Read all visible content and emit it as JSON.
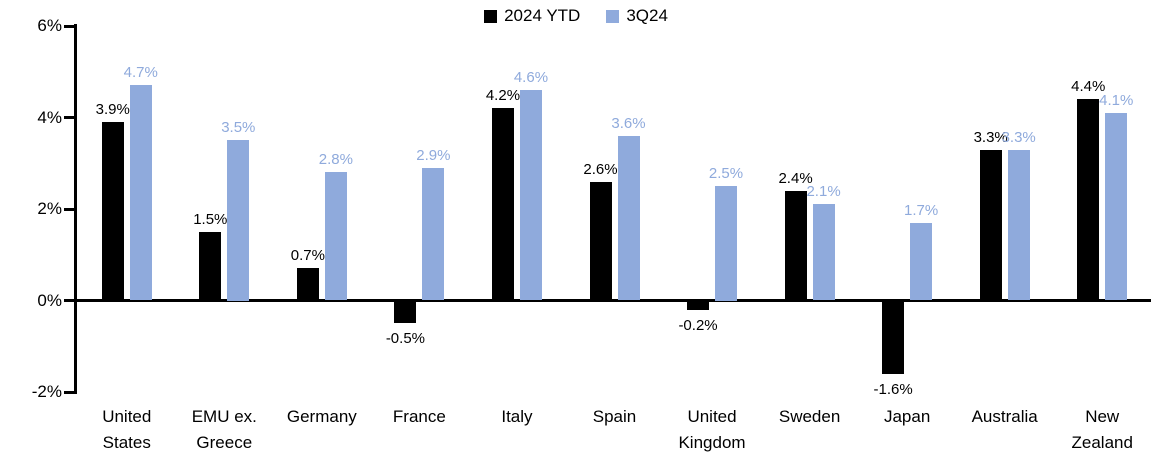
{
  "chart_data": {
    "type": "bar",
    "title": "",
    "legend": {
      "position": "top-center",
      "entries": [
        {
          "label": "2024 YTD",
          "color": "#000000"
        },
        {
          "label": "3Q24",
          "color": "#8FAADC"
        }
      ]
    },
    "categories": [
      "United States",
      "EMU ex. Greece",
      "Germany",
      "France",
      "Italy",
      "Spain",
      "United Kingdom",
      "Sweden",
      "Japan",
      "Australia",
      "New Zealand"
    ],
    "category_label_lines": [
      [
        "United",
        "States"
      ],
      [
        "EMU ex.",
        "Greece"
      ],
      [
        "Germany"
      ],
      [
        "France"
      ],
      [
        "Italy"
      ],
      [
        "Spain"
      ],
      [
        "United",
        "Kingdom"
      ],
      [
        "Sweden"
      ],
      [
        "Japan"
      ],
      [
        "Australia"
      ],
      [
        "New",
        "Zealand"
      ]
    ],
    "series": [
      {
        "name": "2024 YTD",
        "color": "#000000",
        "values": [
          3.9,
          1.5,
          0.7,
          -0.5,
          4.2,
          2.6,
          -0.2,
          2.4,
          -1.6,
          3.3,
          4.4
        ],
        "labels": [
          "3.9%",
          "1.5%",
          "0.7%",
          "-0.5%",
          "4.2%",
          "2.6%",
          "-0.2%",
          "2.4%",
          "-1.6%",
          "3.3%",
          "4.4%"
        ]
      },
      {
        "name": "3Q24",
        "color": "#8FAADC",
        "values": [
          4.7,
          3.5,
          2.8,
          2.9,
          4.6,
          3.6,
          2.5,
          2.1,
          1.7,
          3.3,
          4.1
        ],
        "labels": [
          "4.7%",
          "3.5%",
          "2.8%",
          "2.9%",
          "4.6%",
          "3.6%",
          "2.5%",
          "2.1%",
          "1.7%",
          "3.3%",
          "4.1%"
        ]
      }
    ],
    "y_axis": {
      "min": -2,
      "max": 6,
      "tick_labels": [
        "6%",
        "4%",
        "2%",
        "0%",
        "-2%"
      ],
      "tick_values": [
        6,
        4,
        2,
        0,
        -2
      ],
      "grid": false
    },
    "colors": {
      "axis": "#000000",
      "background": "#FFFFFF"
    }
  }
}
